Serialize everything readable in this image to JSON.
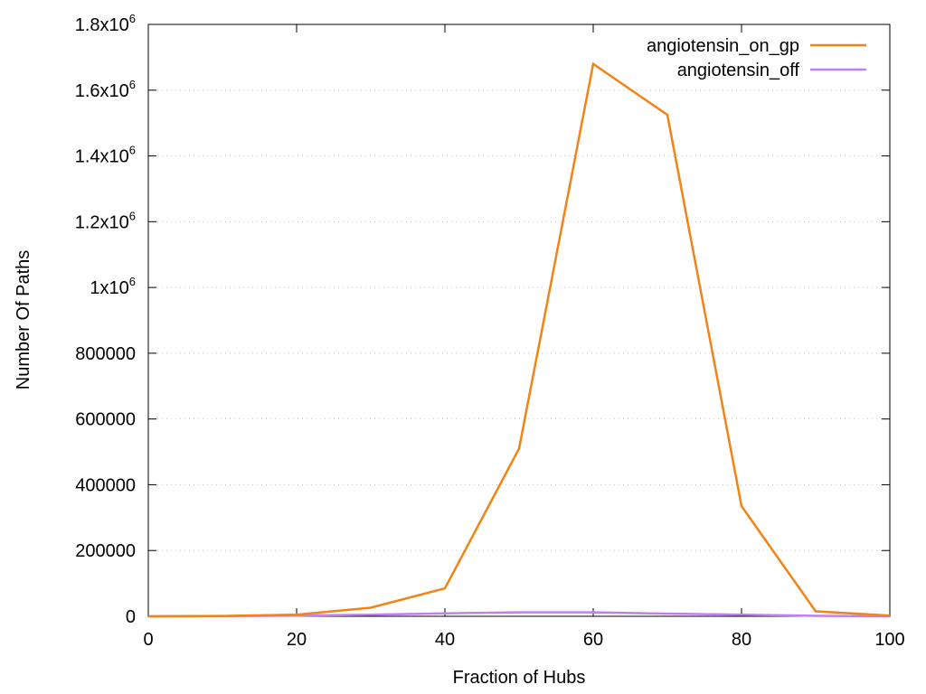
{
  "chart_data": {
    "type": "line",
    "title": "",
    "xlabel": "Fraction of Hubs",
    "ylabel": "Number Of Paths",
    "xlim": [
      0,
      100
    ],
    "ylim": [
      0,
      1800000
    ],
    "grid": true,
    "legend_position": "top-right",
    "x_ticks": [
      {
        "value": 0,
        "label": "0"
      },
      {
        "value": 20,
        "label": "20"
      },
      {
        "value": 40,
        "label": "40"
      },
      {
        "value": 60,
        "label": "60"
      },
      {
        "value": 80,
        "label": "80"
      },
      {
        "value": 100,
        "label": "100"
      }
    ],
    "y_ticks": [
      {
        "value": 0,
        "label": "0",
        "exp": ""
      },
      {
        "value": 200000,
        "label": "200000",
        "exp": ""
      },
      {
        "value": 400000,
        "label": "400000",
        "exp": ""
      },
      {
        "value": 600000,
        "label": "600000",
        "exp": ""
      },
      {
        "value": 800000,
        "label": "800000",
        "exp": ""
      },
      {
        "value": 1000000,
        "label": "1x10",
        "exp": "6"
      },
      {
        "value": 1200000,
        "label": "1.2x10",
        "exp": "6"
      },
      {
        "value": 1400000,
        "label": "1.4x10",
        "exp": "6"
      },
      {
        "value": 1600000,
        "label": "1.6x10",
        "exp": "6"
      },
      {
        "value": 1800000,
        "label": "1.8x10",
        "exp": "6"
      }
    ],
    "x": [
      0,
      10,
      20,
      30,
      40,
      50,
      60,
      70,
      80,
      90,
      100
    ],
    "series": [
      {
        "name": "angiotensin_on_gp",
        "color": "#f28314",
        "values": [
          0,
          1000,
          5000,
          26000,
          85000,
          510000,
          1680000,
          1525000,
          335000,
          15000,
          2000
        ]
      },
      {
        "name": "angiotensin_off",
        "color": "#c080f0",
        "values": [
          0,
          500,
          2000,
          5000,
          9000,
          12000,
          12000,
          8000,
          5000,
          1500,
          0
        ]
      }
    ]
  }
}
